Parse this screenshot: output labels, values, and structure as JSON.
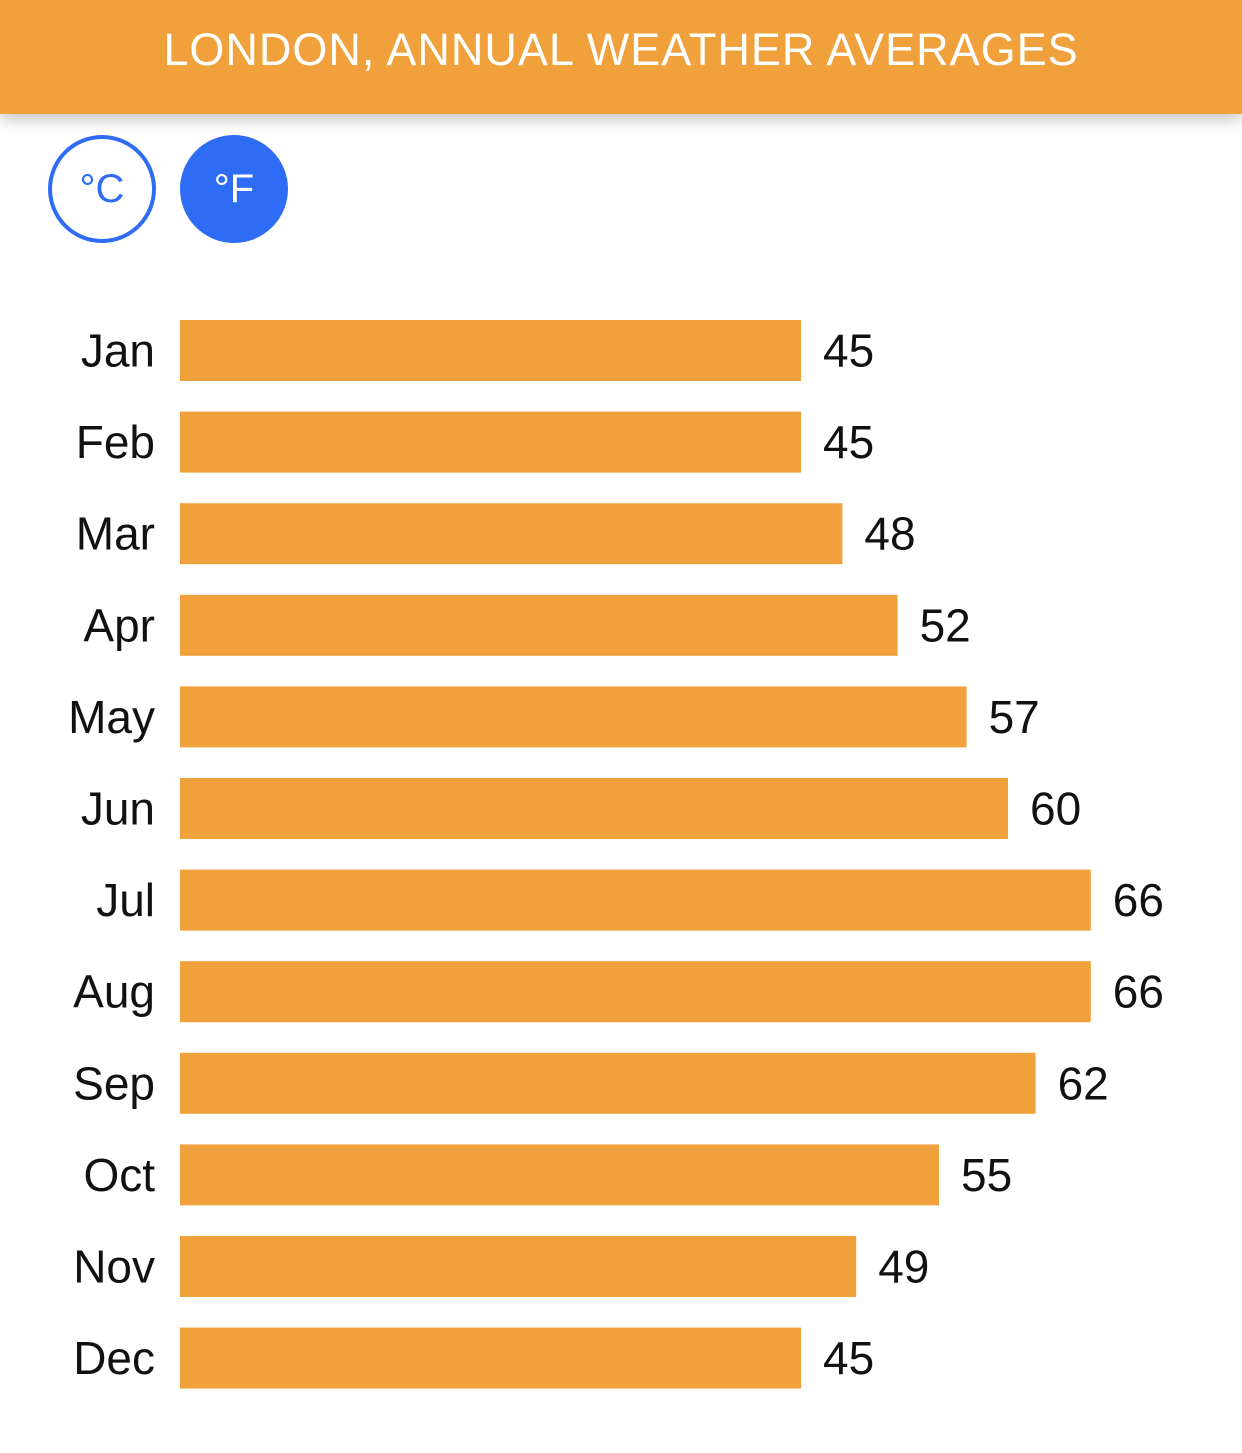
{
  "header": {
    "title": "LONDON, ANNUAL WEATHER AVERAGES"
  },
  "units": {
    "celsius_label": "°C",
    "fahrenheit_label": "°F",
    "selected": "fahrenheit",
    "accent_color": "#2f6cf5"
  },
  "chart_data": {
    "type": "bar",
    "orientation": "horizontal",
    "categories": [
      "Jan",
      "Feb",
      "Mar",
      "Apr",
      "May",
      "Jun",
      "Jul",
      "Aug",
      "Sep",
      "Oct",
      "Nov",
      "Dec"
    ],
    "values": [
      45,
      45,
      48,
      52,
      57,
      60,
      66,
      66,
      62,
      55,
      49,
      45
    ],
    "bar_color": "#f0a13c",
    "grid": false,
    "legend": "none"
  }
}
